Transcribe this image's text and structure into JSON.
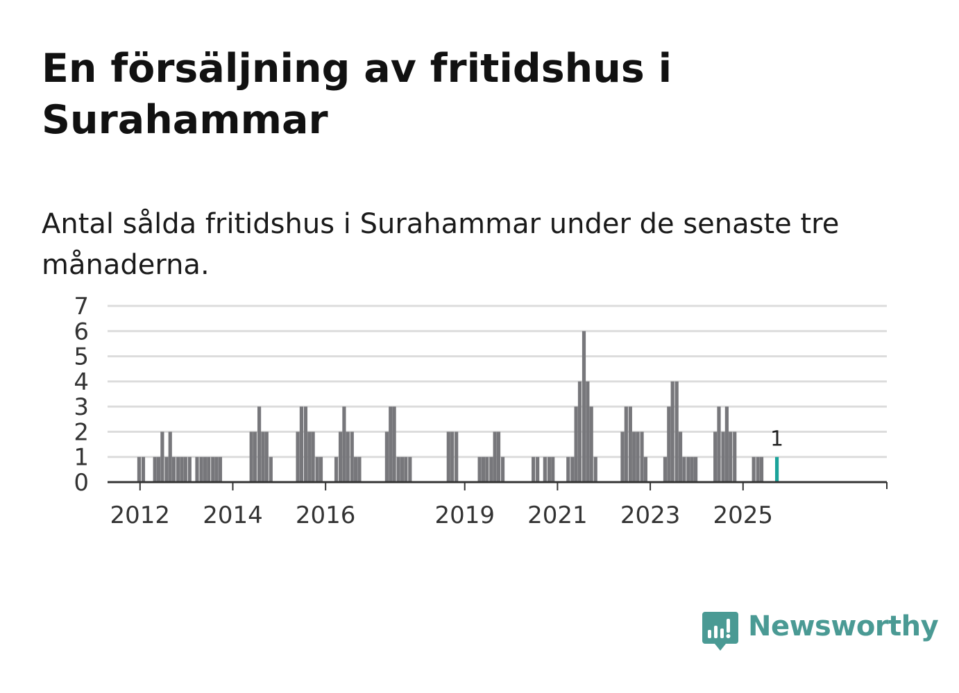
{
  "title": "En försäljning av fritidshus i Surahammar",
  "subtitle": "Antal sålda fritidshus i Surahammar under de senaste tre månaderna.",
  "brand": {
    "name": "Newsworthy",
    "icon": "bar-chart-speech-bubble-icon",
    "color": "#4a9a94"
  },
  "colors": {
    "bar": "#77777b",
    "highlight": "#1aa39a",
    "grid": "#dcdcdc",
    "axis": "#333333"
  },
  "chart_data": {
    "type": "bar",
    "unit": "quarter",
    "xlim": [
      2011.3,
      2028.1
    ],
    "ylim": [
      0,
      7
    ],
    "yticks": [
      0,
      1,
      2,
      3,
      4,
      5,
      6,
      7
    ],
    "xticks": [
      "2012",
      "2014",
      "2016",
      "2019",
      "2021",
      "2023",
      "2025"
    ],
    "grid": true,
    "highlight_label": "1",
    "series": [
      {
        "x": [
          2011.98,
          2012.07,
          2012.32,
          2012.4,
          2012.48,
          2012.57,
          2012.65,
          2012.73,
          2012.82,
          2012.9,
          2012.98,
          2013.07,
          2013.23,
          2013.32,
          2013.4,
          2013.48,
          2013.57,
          2013.65,
          2013.73,
          2014.4,
          2014.48,
          2014.57,
          2014.65,
          2014.73,
          2014.82,
          2015.4,
          2015.48,
          2015.57,
          2015.65,
          2015.73,
          2015.82,
          2015.9,
          2016.23,
          2016.32,
          2016.4,
          2016.48,
          2016.57,
          2016.65,
          2016.73,
          2017.32,
          2017.4,
          2017.48,
          2017.57,
          2017.65,
          2017.73,
          2017.82,
          2018.65,
          2018.73,
          2018.82,
          2019.32,
          2019.4,
          2019.48,
          2019.57,
          2019.65,
          2019.73,
          2019.82,
          2020.48,
          2020.57,
          2020.73,
          2020.82,
          2020.9,
          2021.23,
          2021.32,
          2021.4,
          2021.48,
          2021.57,
          2021.65,
          2021.73,
          2021.82,
          2022.4,
          2022.48,
          2022.57,
          2022.65,
          2022.73,
          2022.82,
          2022.9,
          2023.32,
          2023.4,
          2023.48,
          2023.57,
          2023.65,
          2023.73,
          2023.82,
          2023.9,
          2023.98,
          2024.4,
          2024.48,
          2024.57,
          2024.65,
          2024.73,
          2024.82,
          2025.23,
          2025.32,
          2025.4,
          2025.73
        ],
        "values": [
          1,
          1,
          1,
          1,
          2,
          1,
          2,
          1,
          1,
          1,
          1,
          1,
          1,
          1,
          1,
          1,
          1,
          1,
          1,
          2,
          2,
          3,
          2,
          2,
          1,
          2,
          3,
          3,
          2,
          2,
          1,
          1,
          1,
          2,
          3,
          2,
          2,
          1,
          1,
          2,
          3,
          3,
          1,
          1,
          1,
          1,
          2,
          2,
          2,
          1,
          1,
          1,
          1,
          2,
          2,
          1,
          1,
          1,
          1,
          1,
          1,
          1,
          1,
          3,
          4,
          6,
          4,
          3,
          1,
          2,
          3,
          3,
          2,
          2,
          2,
          1,
          1,
          3,
          4,
          4,
          2,
          1,
          1,
          1,
          1,
          2,
          3,
          2,
          3,
          2,
          2,
          1,
          1,
          1,
          1
        ],
        "highlight_last": true
      }
    ]
  }
}
